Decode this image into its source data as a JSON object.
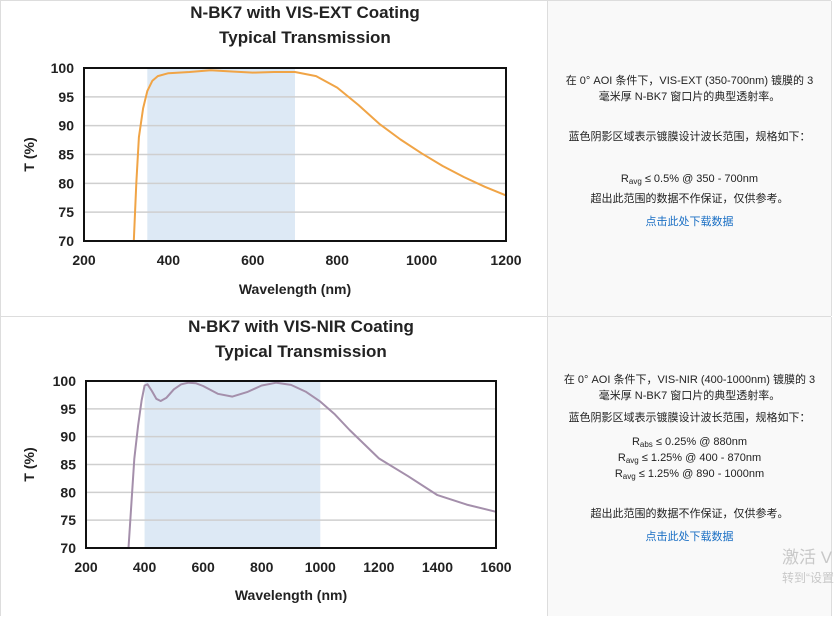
{
  "rows": [
    {
      "description": [
        "在 0° AOI 条件下，VIS-EXT (350-700nm) 镀膜的 3",
        "毫米厚 N-BK7 窗口片的典型透射率。"
      ],
      "shading_note": "蓝色阴影区域表示镀膜设计波长范围，规格如下：",
      "specs": [
        {
          "symbol": "R",
          "sub": "avg",
          "text": "≤ 0.5% @ 350 - 700nm"
        }
      ],
      "disclaimer": "超出此范围的数据不作保证，仅供参考。",
      "download_link": "点击此处下载数据"
    },
    {
      "description": [
        "在 0° AOI 条件下，VIS-NIR (400-1000nm) 镀膜的 3",
        "毫米厚 N-BK7 窗口片的典型透射率。"
      ],
      "shading_note": "蓝色阴影区域表示镀膜设计波长范围，规格如下：",
      "specs": [
        {
          "symbol": "R",
          "sub": "abs",
          "text": "≤ 0.25% @ 880nm"
        },
        {
          "symbol": "R",
          "sub": "avg",
          "text": "≤ 1.25% @ 400 - 870nm"
        },
        {
          "symbol": "R",
          "sub": "avg",
          "text": "≤ 1.25% @ 890 - 1000nm"
        }
      ],
      "disclaimer": "超出此范围的数据不作保证，仅供参考。",
      "download_link": "点击此处下载数据"
    }
  ],
  "watermark": {
    "line1": "激活 V",
    "line2": "转到“设置"
  },
  "chart_data": [
    {
      "type": "line",
      "title": [
        "N-BK7 with VIS-EXT Coating",
        "Typical Transmission"
      ],
      "xlabel": "Wavelength (nm)",
      "ylabel": "T (%)",
      "xlim": [
        200,
        1200
      ],
      "ylim": [
        70,
        100
      ],
      "xticks": [
        200,
        400,
        600,
        800,
        1000,
        1200
      ],
      "yticks": [
        70,
        75,
        80,
        85,
        90,
        95,
        100
      ],
      "grid": "horizontal",
      "shaded_range": [
        350,
        700
      ],
      "shade_color": "#dde9f5",
      "line_color": "#f0a446",
      "x": [
        318,
        324,
        330,
        340,
        350,
        362,
        375,
        400,
        450,
        500,
        550,
        600,
        650,
        700,
        750,
        800,
        850,
        900,
        950,
        1000,
        1050,
        1100,
        1150,
        1200
      ],
      "y": [
        70,
        80,
        88,
        93,
        96,
        97.8,
        98.6,
        99.1,
        99.3,
        99.6,
        99.4,
        99.2,
        99.3,
        99.3,
        98.6,
        96.6,
        93.6,
        90.3,
        87.6,
        85.2,
        83.0,
        81.1,
        79.4,
        77.9
      ]
    },
    {
      "type": "line",
      "title": [
        "N-BK7 with VIS-NIR Coating",
        "Typical Transmission"
      ],
      "xlabel": "Wavelength (nm)",
      "ylabel": "T (%)",
      "xlim": [
        200,
        1600
      ],
      "ylim": [
        70,
        100
      ],
      "xticks": [
        200,
        400,
        600,
        800,
        1000,
        1200,
        1400,
        1600
      ],
      "yticks": [
        70,
        75,
        80,
        85,
        90,
        95,
        100
      ],
      "grid": "horizontal",
      "shaded_range": [
        400,
        1000
      ],
      "shade_color": "#dde9f5",
      "line_color": "#a48fab",
      "x": [
        345,
        355,
        365,
        378,
        390,
        400,
        410,
        425,
        440,
        455,
        475,
        500,
        525,
        550,
        575,
        600,
        650,
        700,
        750,
        800,
        850,
        900,
        950,
        1000,
        1050,
        1100,
        1200,
        1300,
        1400,
        1500,
        1600
      ],
      "y": [
        70,
        78,
        86,
        92,
        96.5,
        99.2,
        99.4,
        98.2,
        96.8,
        96.4,
        97.0,
        98.5,
        99.4,
        99.7,
        99.6,
        99.1,
        97.7,
        97.2,
        98.0,
        99.2,
        99.7,
        99.3,
        98.1,
        96.3,
        94.0,
        91.2,
        86.1,
        82.9,
        79.5,
        77.8,
        76.5
      ]
    }
  ]
}
